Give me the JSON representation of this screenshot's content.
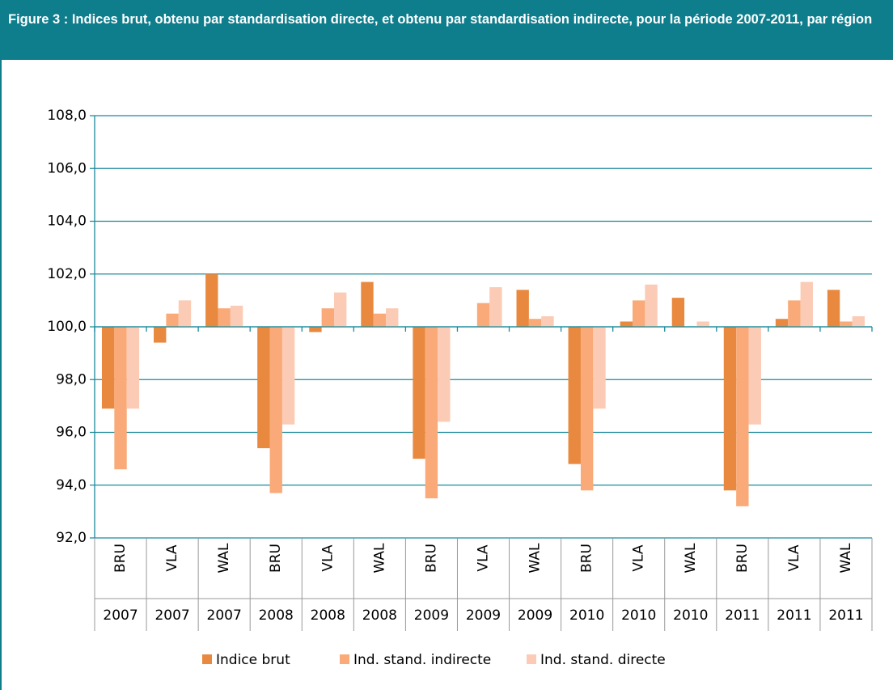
{
  "chart_data": {
    "type": "bar",
    "title": "Figure 3 :  Indices brut, obtenu par standardisation directe, et obtenu par standardisation indirecte, pour la période 2007-2011, par région",
    "categories": [
      "BRU",
      "VLA",
      "WAL",
      "BRU",
      "VLA",
      "WAL",
      "BRU",
      "VLA",
      "WAL",
      "BRU",
      "VLA",
      "WAL",
      "BRU",
      "VLA",
      "WAL"
    ],
    "years": [
      "2007",
      "2007",
      "2007",
      "2008",
      "2008",
      "2008",
      "2009",
      "2009",
      "2009",
      "2010",
      "2010",
      "2010",
      "2011",
      "2011",
      "2011"
    ],
    "series": [
      {
        "name": "Indice brut",
        "color": "#e8893f",
        "values": [
          96.9,
          99.4,
          102.0,
          95.4,
          99.8,
          101.7,
          95.0,
          100.0,
          101.4,
          94.8,
          100.2,
          101.1,
          93.8,
          100.3,
          101.4
        ]
      },
      {
        "name": "Ind. stand. indirecte",
        "color": "#f9aa78",
        "values": [
          94.6,
          100.5,
          100.7,
          93.7,
          100.7,
          100.5,
          93.5,
          100.9,
          100.3,
          93.8,
          101.0,
          100.0,
          93.2,
          101.0,
          100.2
        ]
      },
      {
        "name": "Ind. stand. directe",
        "color": "#fbcbb5",
        "values": [
          96.9,
          101.0,
          100.8,
          96.3,
          101.3,
          100.7,
          96.4,
          101.5,
          100.4,
          96.9,
          101.6,
          100.2,
          96.3,
          101.7,
          100.4
        ]
      }
    ],
    "ylim": [
      92,
      108
    ],
    "yticks": [
      {
        "value": 92,
        "label": "92,0"
      },
      {
        "value": 94,
        "label": "94,0"
      },
      {
        "value": 96,
        "label": "96,0"
      },
      {
        "value": 98,
        "label": "98,0"
      },
      {
        "value": 100,
        "label": "100,0"
      },
      {
        "value": 102,
        "label": "102,0"
      },
      {
        "value": 104,
        "label": "104,0"
      },
      {
        "value": 106,
        "label": "106,0"
      },
      {
        "value": 108,
        "label": "108,0"
      }
    ],
    "baseline": 100,
    "grid": true,
    "legend": "bottom"
  }
}
